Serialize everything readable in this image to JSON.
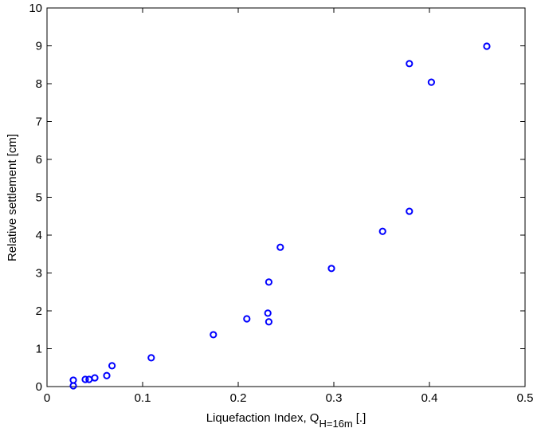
{
  "chart_data": {
    "type": "scatter",
    "xlabel": "Liquefaction Index, Q",
    "xlabel_subscript": "H=16m",
    "xlabel_suffix": "[.]",
    "ylabel": "Relative settlement [cm]",
    "x": [
      0.0275,
      0.0275,
      0.04,
      0.044,
      0.05,
      0.0625,
      0.068,
      0.109,
      0.174,
      0.209,
      0.231,
      0.232,
      0.232,
      0.244,
      0.2975,
      0.351,
      0.379,
      0.379,
      0.402,
      0.46
    ],
    "values": [
      0.02,
      0.17,
      0.19,
      0.19,
      0.23,
      0.29,
      0.55,
      0.76,
      1.37,
      1.79,
      1.94,
      1.71,
      2.76,
      3.68,
      3.12,
      4.1,
      4.63,
      8.53,
      8.04,
      8.99
    ],
    "color": "#0000ff",
    "xlim": [
      0,
      0.5
    ],
    "xticks": [
      0,
      0.1,
      0.2,
      0.3,
      0.4,
      0.5
    ],
    "ylim": [
      0,
      10
    ],
    "yticks": [
      0,
      1,
      2,
      3,
      4,
      5,
      6,
      7,
      8,
      9,
      10
    ],
    "grid": false
  }
}
